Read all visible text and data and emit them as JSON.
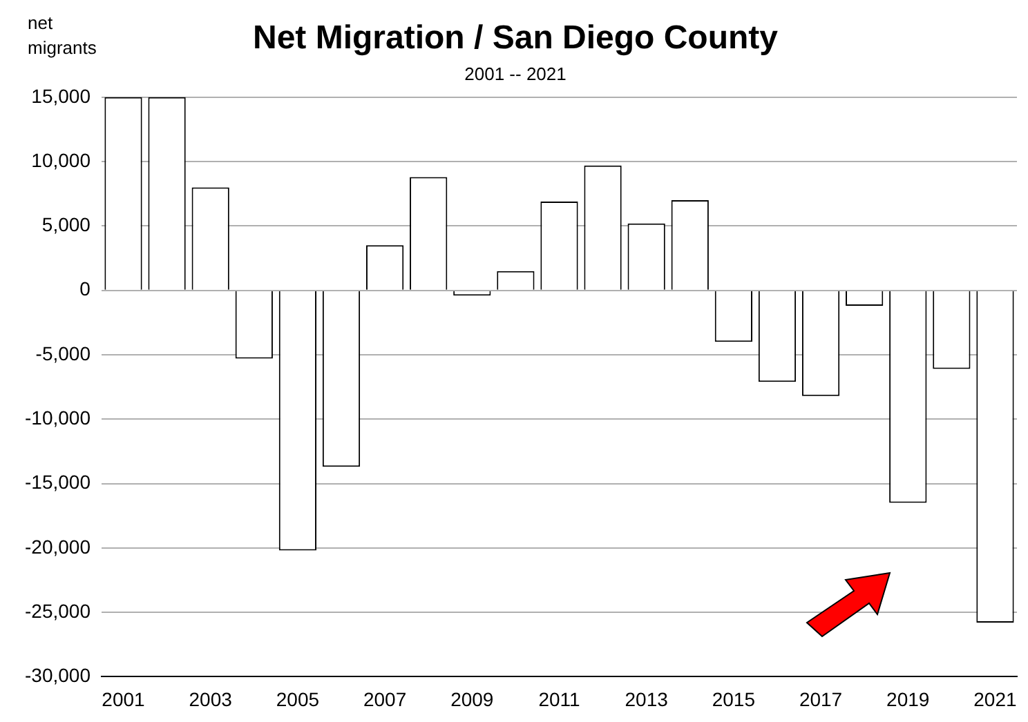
{
  "chart_data": {
    "type": "bar",
    "title": "Net Migration / San Diego County",
    "subtitle": "2001 -- 2021",
    "ylabel": "net\nmigrants",
    "categories": [
      "2001",
      null,
      "2003",
      null,
      "2005",
      null,
      "2007",
      null,
      "2009",
      null,
      "2011",
      null,
      "2013",
      null,
      "2015",
      null,
      "2017",
      null,
      "2019",
      null,
      "2021"
    ],
    "values": [
      15000,
      15000,
      8000,
      -5300,
      -20200,
      -13700,
      3500,
      8800,
      -400,
      1500,
      6900,
      9700,
      5200,
      7000,
      -4000,
      -7100,
      -8200,
      -1200,
      -16500,
      -6100,
      -25800
    ],
    "color": "#ffffff",
    "ylim": [
      -30000,
      15000
    ],
    "yticks": [
      {
        "value": -30000,
        "label": "-30,000"
      },
      {
        "value": -25000,
        "label": "-25,000"
      },
      {
        "value": -20000,
        "label": "-20,000"
      },
      {
        "value": -15000,
        "label": "-15,000"
      },
      {
        "value": -10000,
        "label": "-10,000"
      },
      {
        "value": -5000,
        "label": "-5,000"
      },
      0,
      {
        "value": 5000,
        "label": "5,000"
      },
      {
        "value": 10000,
        "label": "10,000"
      },
      {
        "value": 15000,
        "label": "15,000"
      }
    ],
    "grid": "y",
    "legend": false
  }
}
